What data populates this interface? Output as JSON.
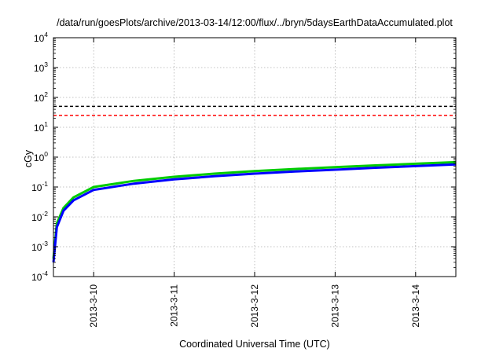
{
  "chart_data": {
    "type": "line",
    "title": "/data/run/goesPlots/archive/2013-03-14/12:00/flux/../bryn/5daysEarthDataAccumulated.plot",
    "xlabel": "Coordinated Universal Time (UTC)",
    "ylabel": "cGy",
    "y_scale": "log",
    "ylim": [
      0.0001,
      10000
    ],
    "y_ticks": [
      {
        "value": 0.0001,
        "base": "10",
        "exp": "-4"
      },
      {
        "value": 0.001,
        "base": "10",
        "exp": "-3"
      },
      {
        "value": 0.01,
        "base": "10",
        "exp": "-2"
      },
      {
        "value": 0.1,
        "base": "10",
        "exp": "-1"
      },
      {
        "value": 1,
        "base": "10",
        "exp": "0"
      },
      {
        "value": 10,
        "base": "10",
        "exp": "1"
      },
      {
        "value": 100,
        "base": "10",
        "exp": "2"
      },
      {
        "value": 1000,
        "base": "10",
        "exp": "3"
      },
      {
        "value": 10000,
        "base": "10",
        "exp": "4"
      }
    ],
    "xlim": [
      "2013-03-09 12:00",
      "2013-03-14 12:00"
    ],
    "x_ticks": [
      "2013-3-10",
      "2013-3-11",
      "2013-3-12",
      "2013-3-13",
      "2013-3-14"
    ],
    "grid": true,
    "series": [
      {
        "color": "#00cc00",
        "width": 3,
        "x": [
          "2013-03-09 12:00",
          "2013-03-09 13:00",
          "2013-03-09 15:00",
          "2013-03-09 18:00",
          "2013-03-10 00:00",
          "2013-03-10 12:00",
          "2013-03-11 00:00",
          "2013-03-11 12:00",
          "2013-03-12 00:00",
          "2013-03-12 12:00",
          "2013-03-13 00:00",
          "2013-03-13 12:00",
          "2013-03-14 00:00",
          "2013-03-14 12:00"
        ],
        "values": [
          0.0004,
          0.006,
          0.02,
          0.045,
          0.1,
          0.16,
          0.22,
          0.28,
          0.34,
          0.4,
          0.46,
          0.53,
          0.6,
          0.68
        ]
      },
      {
        "color": "#0000ff",
        "width": 3,
        "x": [
          "2013-03-09 12:00",
          "2013-03-09 13:00",
          "2013-03-09 15:00",
          "2013-03-09 18:00",
          "2013-03-10 00:00",
          "2013-03-10 12:00",
          "2013-03-11 00:00",
          "2013-03-11 12:00",
          "2013-03-12 00:00",
          "2013-03-12 12:00",
          "2013-03-13 00:00",
          "2013-03-13 12:00",
          "2013-03-14 00:00",
          "2013-03-14 12:00"
        ],
        "values": [
          0.0003,
          0.0045,
          0.016,
          0.036,
          0.08,
          0.13,
          0.18,
          0.23,
          0.28,
          0.33,
          0.38,
          0.44,
          0.5,
          0.57
        ]
      },
      {
        "color": "#000000",
        "width": 1.5,
        "dashed": true,
        "x": [
          "2013-03-09 12:00",
          "2013-03-14 12:00"
        ],
        "values": [
          50,
          50
        ]
      },
      {
        "color": "#ff0000",
        "width": 1.5,
        "dashed": true,
        "x": [
          "2013-03-09 12:00",
          "2013-03-14 12:00"
        ],
        "values": [
          25,
          25
        ]
      }
    ]
  }
}
